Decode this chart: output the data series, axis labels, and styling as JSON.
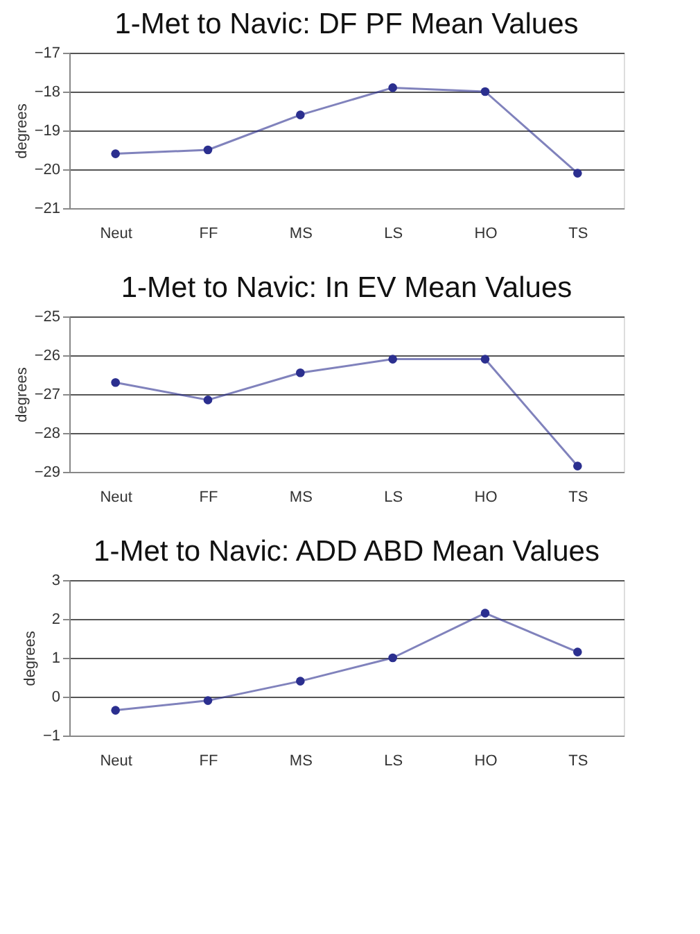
{
  "chart_data": [
    {
      "type": "line",
      "title": "1-Met to Navic: DF PF Mean Values",
      "ylabel": "degrees",
      "categories": [
        "Neut",
        "FF",
        "MS",
        "LS",
        "HO",
        "TS"
      ],
      "series": [
        {
          "color": "#2b2f8f",
          "values": [
            -19.6,
            -19.5,
            -18.6,
            -17.9,
            -18.0,
            -20.1
          ]
        }
      ],
      "ylim": [
        -21,
        -17
      ],
      "yticks": [
        -21,
        -20,
        -19,
        -18,
        -17
      ],
      "grid": "y",
      "marker": "circle"
    },
    {
      "type": "line",
      "title": "1-Met to Navic: In EV Mean Values",
      "ylabel": "degrees",
      "categories": [
        "Neut",
        "FF",
        "MS",
        "LS",
        "HO",
        "TS"
      ],
      "series": [
        {
          "color": "#2b2f8f",
          "values": [
            -26.7,
            -27.15,
            -26.45,
            -26.1,
            -26.1,
            -28.85
          ]
        }
      ],
      "ylim": [
        -29,
        -25
      ],
      "yticks": [
        -29,
        -28,
        -27,
        -26,
        -25
      ],
      "grid": "y",
      "marker": "circle"
    },
    {
      "type": "line",
      "title": "1-Met to Navic: ADD ABD Mean Values",
      "ylabel": "degrees",
      "categories": [
        "Neut",
        "FF",
        "MS",
        "LS",
        "HO",
        "TS"
      ],
      "series": [
        {
          "color": "#2b2f8f",
          "values": [
            -0.35,
            -0.1,
            0.4,
            1.0,
            2.15,
            1.15
          ]
        }
      ],
      "ylim": [
        -1,
        3
      ],
      "yticks": [
        -1,
        0,
        1,
        2,
        3
      ],
      "grid": "y",
      "marker": "circle"
    }
  ]
}
